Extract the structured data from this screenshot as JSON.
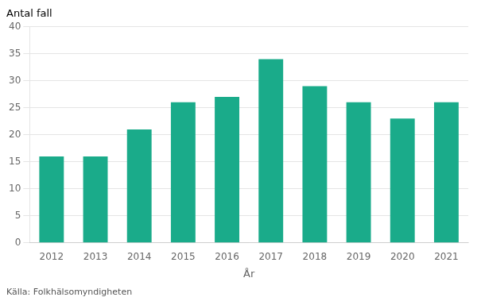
{
  "chart_data": {
    "type": "bar",
    "categories": [
      "2012",
      "2013",
      "2014",
      "2015",
      "2016",
      "2017",
      "2018",
      "2019",
      "2020",
      "2021"
    ],
    "values": [
      16,
      16,
      21,
      26,
      27,
      34,
      29,
      26,
      23,
      26
    ],
    "color": "#1aab8a",
    "xlabel": "År",
    "ylabel": "Antal fall",
    "annotation": "Källa: Folkhälsomyndigheten",
    "ylim": [
      0,
      40
    ],
    "yticks": [
      0,
      5,
      10,
      15,
      20,
      25,
      30,
      35,
      40
    ],
    "grid": true
  }
}
